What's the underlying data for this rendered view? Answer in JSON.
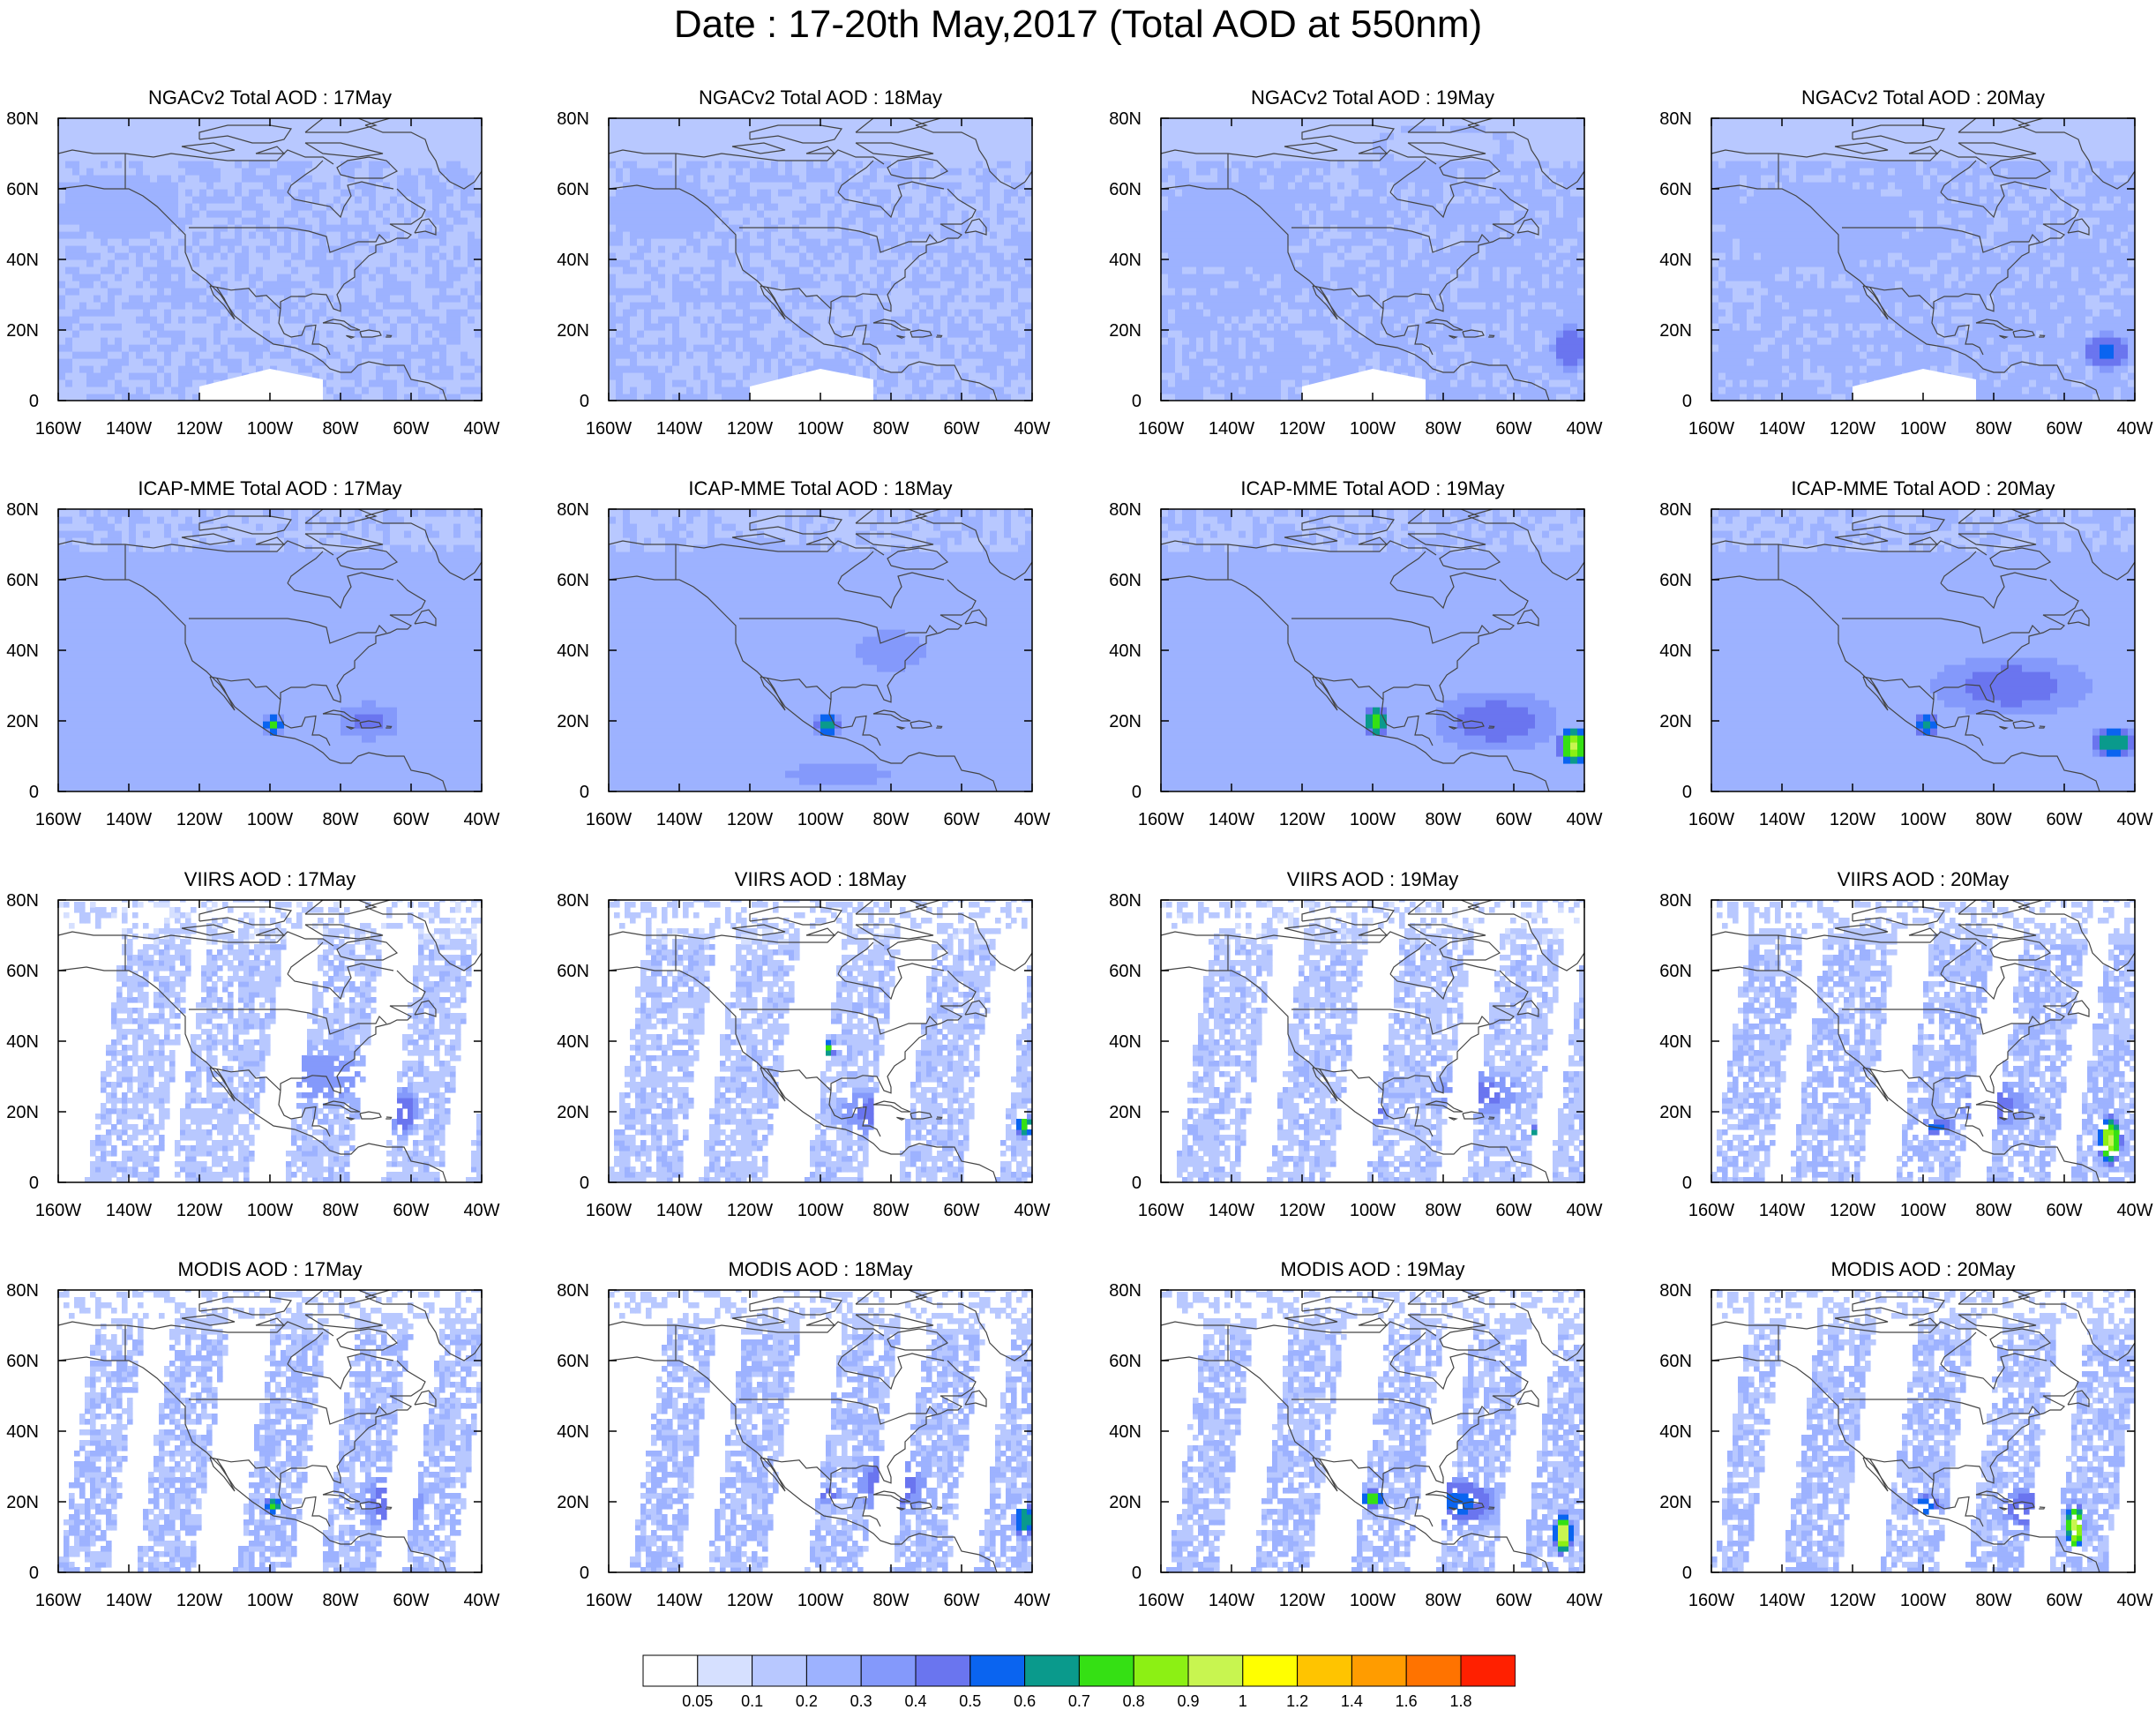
{
  "title": "Date : 17-20th May,2017 (Total AOD at 550nm)",
  "rows": [
    {
      "product": "NGACv2",
      "titles": [
        "NGACv2 Total AOD : 17May",
        "NGACv2 Total AOD : 18May",
        "NGACv2 Total AOD : 19May",
        "NGACv2 Total AOD : 20May"
      ]
    },
    {
      "product": "ICAP-MME",
      "titles": [
        "ICAP-MME Total AOD : 17May",
        "ICAP-MME Total AOD : 18May",
        "ICAP-MME Total AOD : 19May",
        "ICAP-MME Total AOD : 20May"
      ]
    },
    {
      "product": "VIIRS",
      "titles": [
        "VIIRS AOD : 17May",
        "VIIRS AOD : 18May",
        "VIIRS AOD : 19May",
        "VIIRS AOD : 20May"
      ]
    },
    {
      "product": "MODIS",
      "titles": [
        "MODIS AOD : 17May",
        "MODIS AOD : 18May",
        "MODIS AOD : 19May",
        "MODIS AOD : 20May"
      ]
    }
  ],
  "axes": {
    "x_ticks": [
      "160W",
      "140W",
      "120W",
      "100W",
      "80W",
      "60W",
      "40W"
    ],
    "y_ticks": [
      "80N",
      "60N",
      "40N",
      "20N",
      "0"
    ],
    "lon_range": [
      -160,
      -40
    ],
    "lat_range": [
      0,
      80
    ]
  },
  "colorbar": {
    "labels": [
      "0.05",
      "0.1",
      "0.2",
      "0.3",
      "0.4",
      "0.5",
      "0.6",
      "0.7",
      "0.8",
      "0.9",
      "1",
      "1.2",
      "1.4",
      "1.6",
      "1.8"
    ],
    "colors": [
      "#ffffff",
      "#d6e0ff",
      "#b8c8ff",
      "#9db2ff",
      "#8499fb",
      "#6a75ef",
      "#0a64f0",
      "#0a9a8c",
      "#35e014",
      "#8cf014",
      "#c8f550",
      "#ffff00",
      "#ffc400",
      "#ff9c00",
      "#ff7300",
      "#ff2000"
    ]
  },
  "colors": {
    "coastline": "#444444",
    "frame": "#000000"
  },
  "field_levels": [
    [
      {
        "base": 0.2,
        "features": [
          [
            -142,
            55,
            16,
            9,
            0.3
          ],
          [
            -95,
            40,
            50,
            15,
            0.17
          ],
          [
            -120,
            10,
            25,
            8,
            0.15
          ],
          [
            -75,
            5,
            15,
            8,
            0.04
          ],
          [
            -95,
            70,
            20,
            5,
            0.13
          ]
        ]
      },
      {
        "base": 0.2,
        "features": [
          [
            -145,
            55,
            15,
            9,
            0.28
          ],
          [
            -100,
            30,
            40,
            20,
            0.16
          ],
          [
            -85,
            5,
            10,
            6,
            0.04
          ],
          [
            -65,
            72,
            20,
            6,
            0.15
          ]
        ]
      },
      {
        "base": 0.22,
        "features": [
          [
            -140,
            50,
            20,
            12,
            0.3
          ],
          [
            -44,
            15,
            6,
            8,
            0.5
          ],
          [
            -85,
            15,
            8,
            10,
            0.08
          ],
          [
            -80,
            72,
            20,
            6,
            0.15
          ]
        ]
      },
      {
        "base": 0.22,
        "features": [
          [
            -130,
            50,
            25,
            12,
            0.28
          ],
          [
            -48,
            14,
            8,
            6,
            0.55
          ],
          [
            -115,
            30,
            15,
            8,
            0.15
          ],
          [
            -90,
            10,
            12,
            6,
            0.08
          ]
        ]
      }
    ],
    [
      {
        "base": 0.25,
        "features": [
          [
            -99,
            19,
            4,
            3,
            0.7
          ],
          [
            -72,
            20,
            10,
            6,
            0.45
          ],
          [
            -85,
            40,
            30,
            12,
            0.18
          ],
          [
            -110,
            60,
            25,
            10,
            0.2
          ]
        ]
      },
      {
        "base": 0.25,
        "features": [
          [
            -98,
            19,
            4,
            4,
            0.65
          ],
          [
            -80,
            40,
            15,
            8,
            0.35
          ],
          [
            -120,
            60,
            25,
            12,
            0.18
          ],
          [
            -95,
            5,
            20,
            5,
            0.35
          ]
        ]
      },
      {
        "base": 0.26,
        "features": [
          [
            -43,
            13,
            5,
            6,
            0.9
          ],
          [
            -99,
            20,
            4,
            5,
            0.8
          ],
          [
            -65,
            20,
            20,
            10,
            0.45
          ],
          [
            -115,
            50,
            30,
            12,
            0.18
          ]
        ]
      },
      {
        "base": 0.26,
        "features": [
          [
            -46,
            14,
            7,
            5,
            0.7
          ],
          [
            -99,
            19,
            4,
            4,
            0.6
          ],
          [
            -75,
            30,
            25,
            10,
            0.45
          ],
          [
            -120,
            55,
            25,
            12,
            0.18
          ]
        ]
      }
    ],
    [
      {
        "swaths": [
          [
            -152,
            -132
          ],
          [
            -128,
            -106
          ],
          [
            -96,
            -78
          ],
          [
            -68,
            -52
          ],
          [
            -44,
            -40
          ]
        ],
        "base": 0.18,
        "features": [
          [
            -99,
            20,
            4,
            4,
            0.55
          ],
          [
            -85,
            30,
            15,
            10,
            0.4
          ],
          [
            -62,
            20,
            5,
            8,
            0.5
          ]
        ]
      },
      {
        "swaths": [
          [
            -160,
            -140
          ],
          [
            -134,
            -116
          ],
          [
            -104,
            -88
          ],
          [
            -78,
            -60
          ],
          [
            -50,
            -40
          ]
        ],
        "base": 0.18,
        "features": [
          [
            -98,
            38,
            3,
            3,
            0.75
          ],
          [
            -85,
            20,
            12,
            8,
            0.45
          ],
          [
            -42,
            16,
            3,
            4,
            0.8
          ]
        ]
      },
      {
        "swaths": [
          [
            -156,
            -138
          ],
          [
            -130,
            -112
          ],
          [
            -102,
            -82
          ],
          [
            -74,
            -56
          ],
          [
            -50,
            -40
          ]
        ],
        "base": 0.18,
        "features": [
          [
            -100,
            20,
            5,
            4,
            0.55
          ],
          [
            -53,
            14,
            3,
            3,
            0.8
          ],
          [
            -70,
            25,
            15,
            8,
            0.45
          ]
        ]
      },
      {
        "swaths": [
          [
            -160,
            -144
          ],
          [
            -138,
            -118
          ],
          [
            -108,
            -90
          ],
          [
            -82,
            -64
          ],
          [
            -58,
            -40
          ]
        ],
        "base": 0.2,
        "features": [
          [
            -47,
            12,
            4,
            8,
            0.95
          ],
          [
            -96,
            16,
            6,
            3,
            0.55
          ],
          [
            -80,
            22,
            12,
            8,
            0.45
          ]
        ]
      }
    ],
    [
      {
        "swaths": [
          [
            -160,
            -146
          ],
          [
            -138,
            -122
          ],
          [
            -110,
            -94
          ],
          [
            -86,
            -70
          ],
          [
            -62,
            -48
          ]
        ],
        "base": 0.2,
        "features": [
          [
            -61,
            24,
            3,
            4,
            0.8
          ],
          [
            -99,
            19,
            3,
            3,
            0.8
          ],
          [
            -65,
            20,
            10,
            10,
            0.5
          ]
        ]
      },
      {
        "swaths": [
          [
            -154,
            -140
          ],
          [
            -132,
            -116
          ],
          [
            -104,
            -88
          ],
          [
            -80,
            -64
          ],
          [
            -56,
            -40
          ]
        ],
        "base": 0.2,
        "features": [
          [
            -42,
            15,
            4,
            6,
            0.7
          ],
          [
            -80,
            25,
            12,
            10,
            0.5
          ],
          [
            -98,
            22,
            5,
            3,
            0.45
          ]
        ]
      },
      {
        "swaths": [
          [
            -158,
            -144
          ],
          [
            -134,
            -118
          ],
          [
            -106,
            -90
          ],
          [
            -82,
            -66
          ],
          [
            -58,
            -40
          ]
        ],
        "base": 0.2,
        "features": [
          [
            -46,
            11,
            3,
            7,
            1.0
          ],
          [
            -100,
            21,
            4,
            3,
            0.8
          ],
          [
            -75,
            20,
            12,
            8,
            0.55
          ]
        ]
      },
      {
        "swaths": [
          [
            -160,
            -150
          ],
          [
            -140,
            -124
          ],
          [
            -112,
            -96
          ],
          [
            -88,
            -72
          ],
          [
            -64,
            -48
          ]
        ],
        "base": 0.2,
        "features": [
          [
            -57,
            13,
            3,
            8,
            1.0
          ],
          [
            -99,
            19,
            5,
            4,
            0.6
          ],
          [
            -70,
            18,
            10,
            8,
            0.5
          ]
        ]
      }
    ]
  ]
}
